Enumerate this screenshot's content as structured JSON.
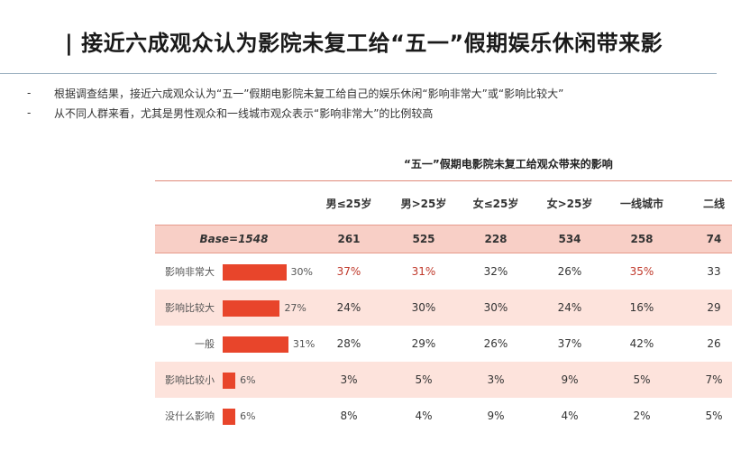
{
  "title": "| 接近六成观众认为影院未复工给“五一”假期娱乐休闲带来影",
  "bullets": [
    {
      "marker": "-",
      "text": "根据调查结果，接近六成观众认为“五一”假期电影院未复工给自己的娱乐休闲“影响非常大”或“影响比较大”"
    },
    {
      "marker": "-",
      "text": "从不同人群来看，尤其是男性观众和一线城市观众表示“影响非常大”的比例较高"
    }
  ],
  "table": {
    "title": "“五一”假期电影院未复工给观众带来的影响",
    "columns": [
      "男≤25岁",
      "男>25岁",
      "女≤25岁",
      "女>25岁",
      "一线城市",
      "二线"
    ],
    "base": {
      "label": "Base=1548",
      "values": [
        "261",
        "525",
        "228",
        "534",
        "258",
        "74"
      ]
    },
    "rows": [
      {
        "label": "影响非常大",
        "total": 30,
        "total_label": "30%",
        "values": [
          "37%",
          "31%",
          "32%",
          "26%",
          "35%",
          "33"
        ],
        "highlight": [
          true,
          true,
          false,
          false,
          true,
          false
        ]
      },
      {
        "label": "影响比较大",
        "total": 27,
        "total_label": "27%",
        "values": [
          "24%",
          "30%",
          "30%",
          "24%",
          "16%",
          "29"
        ],
        "highlight": [
          false,
          false,
          false,
          false,
          false,
          false
        ]
      },
      {
        "label": "一般",
        "total": 31,
        "total_label": "31%",
        "values": [
          "28%",
          "29%",
          "26%",
          "37%",
          "42%",
          "26"
        ],
        "highlight": [
          false,
          false,
          false,
          false,
          false,
          false
        ]
      },
      {
        "label": "影响比较小",
        "total": 6,
        "total_label": "6%",
        "values": [
          "3%",
          "5%",
          "3%",
          "9%",
          "5%",
          "7%"
        ],
        "highlight": [
          false,
          false,
          false,
          false,
          false,
          false
        ]
      },
      {
        "label": "没什么影响",
        "total": 6,
        "total_label": "6%",
        "values": [
          "8%",
          "4%",
          "9%",
          "4%",
          "2%",
          "5%"
        ],
        "highlight": [
          false,
          false,
          false,
          false,
          false,
          false
        ]
      }
    ]
  },
  "colors": {
    "bar": "#e8452b",
    "highlight_text": "#c0392b",
    "shade": "#fde3dc",
    "base_row": "#f8cfc6"
  }
}
